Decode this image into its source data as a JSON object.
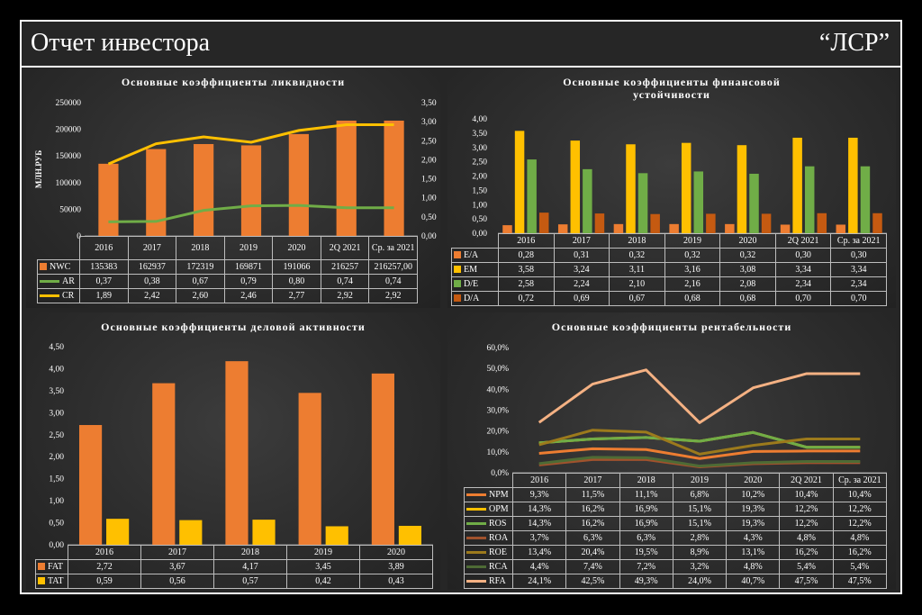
{
  "header": {
    "title": "Отчет инвестора",
    "company": "“ЛСР”"
  },
  "colors": {
    "orange": "#ED7D31",
    "yellow": "#FFC000",
    "green": "#70AD47",
    "dark_orange": "#C55A11",
    "light_orange": "#F4B183"
  },
  "chart_data": [
    {
      "type": "bar",
      "title": "Основные коэффициенты ликвидности",
      "ylabel": "МЛН.РУБ",
      "categories": [
        "2016",
        "2017",
        "2018",
        "2019",
        "2020",
        "2Q 2021",
        "Ср. за 2021"
      ],
      "ylim": [
        0,
        250000
      ],
      "y2lim": [
        0,
        3.5
      ],
      "yticks": [
        "0",
        "50000",
        "100000",
        "150000",
        "200000",
        "250000"
      ],
      "y2ticks": [
        "0,00",
        "0,50",
        "1,00",
        "1,50",
        "2,00",
        "2,50",
        "3,00",
        "3,50"
      ],
      "series": [
        {
          "name": "NWC",
          "kind": "bar",
          "axis": "left",
          "color": "#ED7D31",
          "values": [
            135383,
            162937,
            172319,
            169871,
            191066,
            216257,
            216257
          ],
          "labels": [
            "135383",
            "162937",
            "172319",
            "169871",
            "191066",
            "216257",
            "216257,00"
          ]
        },
        {
          "name": "AR",
          "kind": "line",
          "axis": "right",
          "color": "#70AD47",
          "values": [
            0.37,
            0.38,
            0.67,
            0.79,
            0.8,
            0.74,
            0.74
          ],
          "labels": [
            "0,37",
            "0,38",
            "0,67",
            "0,79",
            "0,80",
            "0,74",
            "0,74"
          ]
        },
        {
          "name": "CR",
          "kind": "line",
          "axis": "right",
          "color": "#FFC000",
          "values": [
            1.89,
            2.42,
            2.6,
            2.46,
            2.77,
            2.92,
            2.92
          ],
          "labels": [
            "1,89",
            "2,42",
            "2,60",
            "2,46",
            "2,77",
            "2,92",
            "2,92"
          ]
        }
      ]
    },
    {
      "type": "bar",
      "title": "Основные коэффициенты финансовой устойчивости",
      "categories": [
        "2016",
        "2017",
        "2018",
        "2019",
        "2020",
        "2Q 2021",
        "Ср. за 2021"
      ],
      "ylim": [
        0,
        4
      ],
      "yticks": [
        "0,00",
        "0,50",
        "1,00",
        "1,50",
        "2,00",
        "2,50",
        "3,00",
        "3,50",
        "4,00"
      ],
      "series": [
        {
          "name": "E/A",
          "color": "#ED7D31",
          "values": [
            0.28,
            0.31,
            0.32,
            0.32,
            0.32,
            0.3,
            0.3
          ],
          "labels": [
            "0,28",
            "0,31",
            "0,32",
            "0,32",
            "0,32",
            "0,30",
            "0,30"
          ]
        },
        {
          "name": "EM",
          "color": "#FFC000",
          "values": [
            3.58,
            3.24,
            3.11,
            3.16,
            3.08,
            3.34,
            3.34
          ],
          "labels": [
            "3,58",
            "3,24",
            "3,11",
            "3,16",
            "3,08",
            "3,34",
            "3,34"
          ]
        },
        {
          "name": "D/E",
          "color": "#70AD47",
          "values": [
            2.58,
            2.24,
            2.1,
            2.16,
            2.08,
            2.34,
            2.34
          ],
          "labels": [
            "2,58",
            "2,24",
            "2,10",
            "2,16",
            "2,08",
            "2,34",
            "2,34"
          ]
        },
        {
          "name": "D/A",
          "color": "#C55A11",
          "values": [
            0.72,
            0.69,
            0.67,
            0.68,
            0.68,
            0.7,
            0.7
          ],
          "labels": [
            "0,72",
            "0,69",
            "0,67",
            "0,68",
            "0,68",
            "0,70",
            "0,70"
          ]
        }
      ]
    },
    {
      "type": "bar",
      "title": "Основные коэффициенты деловой активности",
      "categories": [
        "2016",
        "2017",
        "2018",
        "2019",
        "2020"
      ],
      "ylim": [
        0,
        4.5
      ],
      "yticks": [
        "0,00",
        "0,50",
        "1,00",
        "1,50",
        "2,00",
        "2,50",
        "3,00",
        "3,50",
        "4,00",
        "4,50"
      ],
      "series": [
        {
          "name": "FAT",
          "color": "#ED7D31",
          "values": [
            2.72,
            3.67,
            4.17,
            3.45,
            3.89
          ],
          "labels": [
            "2,72",
            "3,67",
            "4,17",
            "3,45",
            "3,89"
          ]
        },
        {
          "name": "TAT",
          "color": "#FFC000",
          "values": [
            0.59,
            0.56,
            0.57,
            0.42,
            0.43
          ],
          "labels": [
            "0,59",
            "0,56",
            "0,57",
            "0,42",
            "0,43"
          ]
        }
      ]
    },
    {
      "type": "line",
      "title": "Основные коэффициенты рентабельности",
      "categories": [
        "2016",
        "2017",
        "2018",
        "2019",
        "2020",
        "2Q 2021",
        "Ср. за 2021"
      ],
      "ylim": [
        0,
        60
      ],
      "yticks": [
        "0,0%",
        "10,0%",
        "20,0%",
        "30,0%",
        "40,0%",
        "50,0%",
        "60,0%"
      ],
      "series": [
        {
          "name": "NPM",
          "color": "#ED7D31",
          "values": [
            9.3,
            11.5,
            11.1,
            6.8,
            10.2,
            10.4,
            10.4
          ],
          "labels": [
            "9,3%",
            "11,5%",
            "11,1%",
            "6,8%",
            "10,2%",
            "10,4%",
            "10,4%"
          ]
        },
        {
          "name": "OPM",
          "color": "#FFC000",
          "values": [
            14.3,
            16.2,
            16.9,
            15.1,
            19.3,
            12.2,
            12.2
          ],
          "labels": [
            "14,3%",
            "16,2%",
            "16,9%",
            "15,1%",
            "19,3%",
            "12,2%",
            "12,2%"
          ]
        },
        {
          "name": "ROS",
          "color": "#70AD47",
          "values": [
            14.3,
            16.2,
            16.9,
            15.1,
            19.3,
            12.2,
            12.2
          ],
          "labels": [
            "14,3%",
            "16,2%",
            "16,9%",
            "15,1%",
            "19,3%",
            "12,2%",
            "12,2%"
          ]
        },
        {
          "name": "ROA",
          "color": "#A0522D",
          "values": [
            3.7,
            6.3,
            6.3,
            2.8,
            4.3,
            4.8,
            4.8
          ],
          "labels": [
            "3,7%",
            "6,3%",
            "6,3%",
            "2,8%",
            "4,3%",
            "4,8%",
            "4,8%"
          ]
        },
        {
          "name": "ROE",
          "color": "#9C7A1C",
          "values": [
            13.4,
            20.4,
            19.5,
            8.9,
            13.1,
            16.2,
            16.2
          ],
          "labels": [
            "13,4%",
            "20,4%",
            "19,5%",
            "8,9%",
            "13,1%",
            "16,2%",
            "16,2%"
          ]
        },
        {
          "name": "RCA",
          "color": "#4E6B35",
          "values": [
            4.4,
            7.4,
            7.2,
            3.2,
            4.8,
            5.4,
            5.4
          ],
          "labels": [
            "4,4%",
            "7,4%",
            "7,2%",
            "3,2%",
            "4,8%",
            "5,4%",
            "5,4%"
          ]
        },
        {
          "name": "RFA",
          "color": "#F4B183",
          "values": [
            24.1,
            42.5,
            49.3,
            24.0,
            40.7,
            47.5,
            47.5
          ],
          "labels": [
            "24,1%",
            "42,5%",
            "49,3%",
            "24,0%",
            "40,7%",
            "47,5%",
            "47,5%"
          ]
        }
      ]
    }
  ]
}
